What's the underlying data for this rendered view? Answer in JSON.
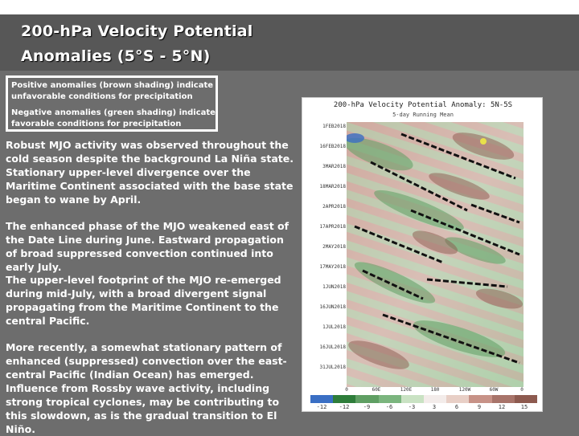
{
  "title": "200-hPa Velocity Potential Anomalies (5°S - 5°N)",
  "notes": [
    "Positive anomalies (brown shading) indicate unfavorable conditions for precipitation",
    "Negative anomalies (green shading) indicate favorable conditions for precipitation"
  ],
  "paragraphs": [
    "Robust MJO activity was observed throughout the cold season despite the background La Niña state. Stationary upper-level divergence over the Maritime Continent associated with the base state began to wane by April.",
    "The enhanced phase of the MJO weakened east of the Date Line during June. Eastward propagation of broad suppressed convection continued into early July.",
    "The upper-level footprint of the MJO re-emerged during mid-July, with a broad divergent signal propagating from the Maritime Continent to the central Pacific.",
    "More recently, a somewhat stationary pattern of enhanced (suppressed) convection over the east-central Pacific (Indian Ocean) has emerged. Influence from Rossby wave activity, including strong tropical cyclones, may be contributing to this slowdown, as is the gradual transition to El Niño."
  ],
  "figure": {
    "title": "200-hPa Velocity Potential Anomaly: 5N-5S",
    "subtitle": "5-day Running Mean",
    "dates": [
      "1FEB2018",
      "16FEB2018",
      "3MAR2018",
      "18MAR2018",
      "2APR2018",
      "17APR2018",
      "2MAY2018",
      "17MAY2018",
      "1JUN2018",
      "16JUN2018",
      "1JUL2018",
      "16JUL2018",
      "31JUL2018"
    ],
    "longitudes": [
      "0",
      "60E",
      "120E",
      "180",
      "120W",
      "60W",
      "0"
    ],
    "colorbar_labels": [
      "-12",
      "-12",
      "-9",
      "-6",
      "-3",
      "3",
      "6",
      "9",
      "12",
      "15"
    ],
    "colors": {
      "green_strong": "#2e7d3a",
      "green_mid": "#7bb57e",
      "green_light": "#c9e2c3",
      "brown_light": "#e8cfc6",
      "brown_mid": "#c79287",
      "brown_strong": "#8d5a4f",
      "blue": "#3a6fc4",
      "yellow": "#e8e04a"
    }
  }
}
